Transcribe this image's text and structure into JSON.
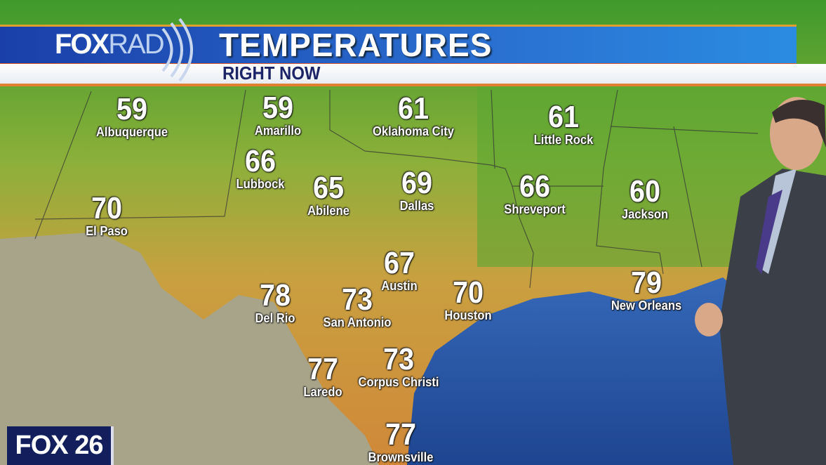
{
  "header": {
    "logo": {
      "fox": "FOX",
      "rad": "RAD"
    },
    "title": "TEMPERATURES",
    "subtitle": "RIGHT NOW"
  },
  "station_bug": "FOX 26",
  "colors": {
    "banner_blue": "#1a3fa8",
    "subtitle_text": "#1c2468",
    "accent_orange": "#e08030",
    "gulf": "#2a55a8"
  },
  "cities": [
    {
      "name": "Albuquerque",
      "temp": "59"
    },
    {
      "name": "Amarillo",
      "temp": "59"
    },
    {
      "name": "Oklahoma City",
      "temp": "61"
    },
    {
      "name": "Little Rock",
      "temp": "61"
    },
    {
      "name": "Lubbock",
      "temp": "66"
    },
    {
      "name": "Abilene",
      "temp": "65"
    },
    {
      "name": "Dallas",
      "temp": "69"
    },
    {
      "name": "Shreveport",
      "temp": "66"
    },
    {
      "name": "Jackson",
      "temp": "60"
    },
    {
      "name": "El Paso",
      "temp": "70"
    },
    {
      "name": "Austin",
      "temp": "67"
    },
    {
      "name": "Del Rio",
      "temp": "78"
    },
    {
      "name": "San Antonio",
      "temp": "73"
    },
    {
      "name": "Houston",
      "temp": "70"
    },
    {
      "name": "New Orleans",
      "temp": "79"
    },
    {
      "name": "Laredo",
      "temp": "77"
    },
    {
      "name": "Corpus Christi",
      "temp": "73"
    },
    {
      "name": "Brownsville",
      "temp": "77"
    }
  ]
}
